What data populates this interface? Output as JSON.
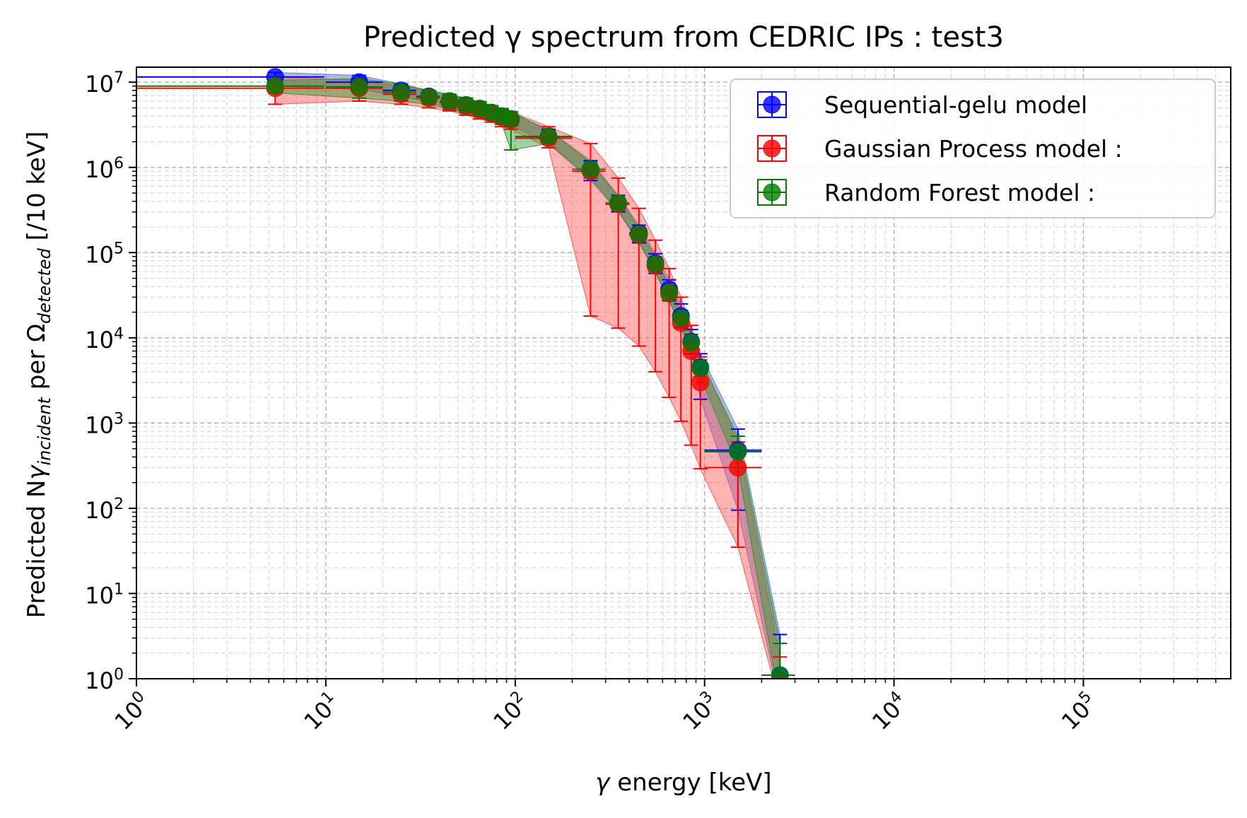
{
  "chart_data": {
    "type": "scatter",
    "title": "Predicted γ spectrum from CEDRIC IPs : test3",
    "xlabel_parts": [
      "γ",
      " energy [keV]"
    ],
    "ylabel_parts": [
      "Predicted N",
      "γ",
      "incident",
      " per ",
      "Ω",
      "detected",
      " [/10 keV]"
    ],
    "x_scale": "log",
    "y_scale": "log",
    "xlim": [
      1,
      600000
    ],
    "ylim": [
      1,
      15000000
    ],
    "x_ticks": [
      {
        "value": 1,
        "base": "10",
        "exp": "0"
      },
      {
        "value": 10,
        "base": "10",
        "exp": "1"
      },
      {
        "value": 100,
        "base": "10",
        "exp": "2"
      },
      {
        "value": 1000,
        "base": "10",
        "exp": "3"
      },
      {
        "value": 10000,
        "base": "10",
        "exp": "4"
      },
      {
        "value": 100000,
        "base": "10",
        "exp": "5"
      }
    ],
    "y_ticks": [
      {
        "value": 1,
        "base": "10",
        "exp": "0"
      },
      {
        "value": 10,
        "base": "10",
        "exp": "1"
      },
      {
        "value": 100,
        "base": "10",
        "exp": "2"
      },
      {
        "value": 1000,
        "base": "10",
        "exp": "3"
      },
      {
        "value": 10000,
        "base": "10",
        "exp": "4"
      },
      {
        "value": 100000,
        "base": "10",
        "exp": "5"
      },
      {
        "value": 1000000,
        "base": "10",
        "exp": "6"
      },
      {
        "value": 10000000,
        "base": "10",
        "exp": "7"
      }
    ],
    "grid": "major and minor, dashed",
    "legend_position": "top-right",
    "series": [
      {
        "name": "Sequential-gelu model",
        "color": "#0000ff",
        "band_color": "#6a7fd6",
        "points": [
          {
            "x": 5.4,
            "y": 11500000,
            "xlo": 1,
            "xhi": 9.8,
            "ylo": 9000000,
            "yhi": 13000000
          },
          {
            "x": 15,
            "y": 10000000,
            "xlo": 10,
            "xhi": 20,
            "ylo": 8200000,
            "yhi": 12000000
          },
          {
            "x": 25,
            "y": 8000000,
            "xlo": 20,
            "xhi": 30,
            "ylo": 6800000,
            "yhi": 9500000
          },
          {
            "x": 35,
            "y": 6800000,
            "xlo": 30,
            "xhi": 40,
            "ylo": 5800000,
            "yhi": 7800000
          },
          {
            "x": 45,
            "y": 6000000,
            "xlo": 40,
            "xhi": 50,
            "ylo": 5100000,
            "yhi": 6900000
          },
          {
            "x": 55,
            "y": 5400000,
            "xlo": 50,
            "xhi": 60,
            "ylo": 4600000,
            "yhi": 6200000
          },
          {
            "x": 65,
            "y": 4900000,
            "xlo": 60,
            "xhi": 70,
            "ylo": 4200000,
            "yhi": 5600000
          },
          {
            "x": 75,
            "y": 4400000,
            "xlo": 70,
            "xhi": 80,
            "ylo": 3800000,
            "yhi": 5100000
          },
          {
            "x": 85,
            "y": 4000000,
            "xlo": 80,
            "xhi": 90,
            "ylo": 3400000,
            "yhi": 4700000
          },
          {
            "x": 95,
            "y": 3700000,
            "xlo": 90,
            "xhi": 100,
            "ylo": 3100000,
            "yhi": 4300000
          },
          {
            "x": 150,
            "y": 2300000,
            "xlo": 100,
            "xhi": 200,
            "ylo": 1900000,
            "yhi": 2800000
          },
          {
            "x": 250,
            "y": 950000,
            "xlo": 200,
            "xhi": 300,
            "ylo": 700000,
            "yhi": 1200000
          },
          {
            "x": 350,
            "y": 380000,
            "xlo": 300,
            "xhi": 400,
            "ylo": 300000,
            "yhi": 470000
          },
          {
            "x": 450,
            "y": 170000,
            "xlo": 400,
            "xhi": 500,
            "ylo": 130000,
            "yhi": 210000
          },
          {
            "x": 550,
            "y": 75000,
            "xlo": 500,
            "xhi": 600,
            "ylo": 57000,
            "yhi": 97000
          },
          {
            "x": 650,
            "y": 37000,
            "xlo": 600,
            "xhi": 700,
            "ylo": 28000,
            "yhi": 48000
          },
          {
            "x": 750,
            "y": 18000,
            "xlo": 700,
            "xhi": 800,
            "ylo": 13000,
            "yhi": 25000
          },
          {
            "x": 850,
            "y": 9000,
            "xlo": 800,
            "xhi": 900,
            "ylo": 6500,
            "yhi": 12500
          },
          {
            "x": 950,
            "y": 4500,
            "xlo": 900,
            "xhi": 1000,
            "ylo": 1900,
            "yhi": 6500
          },
          {
            "x": 1500,
            "y": 480,
            "xlo": 1000,
            "xhi": 2000,
            "ylo": 95,
            "yhi": 850
          },
          {
            "x": 2500,
            "y": 1.1,
            "xlo": 2000,
            "xhi": 3000,
            "ylo": 0.5,
            "yhi": 3.3
          }
        ]
      },
      {
        "name": "Gaussian Process model :",
        "color": "#ff0000",
        "band_color": "#ff5555",
        "points": [
          {
            "x": 5.4,
            "y": 8500000,
            "xlo": 1,
            "xhi": 9.8,
            "ylo": 5500000,
            "yhi": 11500000
          },
          {
            "x": 15,
            "y": 8500000,
            "xlo": 10,
            "xhi": 20,
            "ylo": 6000000,
            "yhi": 10500000
          },
          {
            "x": 25,
            "y": 7200000,
            "xlo": 20,
            "xhi": 30,
            "ylo": 5500000,
            "yhi": 9000000
          },
          {
            "x": 35,
            "y": 6500000,
            "xlo": 30,
            "xhi": 40,
            "ylo": 5000000,
            "yhi": 8000000
          },
          {
            "x": 45,
            "y": 5800000,
            "xlo": 40,
            "xhi": 50,
            "ylo": 4600000,
            "yhi": 7200000
          },
          {
            "x": 55,
            "y": 5200000,
            "xlo": 50,
            "xhi": 60,
            "ylo": 4100000,
            "yhi": 6500000
          },
          {
            "x": 65,
            "y": 4700000,
            "xlo": 60,
            "xhi": 70,
            "ylo": 3700000,
            "yhi": 5900000
          },
          {
            "x": 75,
            "y": 4300000,
            "xlo": 70,
            "xhi": 80,
            "ylo": 3400000,
            "yhi": 5300000
          },
          {
            "x": 85,
            "y": 3900000,
            "xlo": 80,
            "xhi": 90,
            "ylo": 3000000,
            "yhi": 4900000
          },
          {
            "x": 95,
            "y": 3600000,
            "xlo": 90,
            "xhi": 100,
            "ylo": 2800000,
            "yhi": 4500000
          },
          {
            "x": 150,
            "y": 2200000,
            "xlo": 100,
            "xhi": 200,
            "ylo": 1700000,
            "yhi": 3000000
          },
          {
            "x": 250,
            "y": 900000,
            "xlo": 200,
            "xhi": 300,
            "ylo": 18000,
            "yhi": 1900000
          },
          {
            "x": 350,
            "y": 370000,
            "xlo": 300,
            "xhi": 400,
            "ylo": 13000,
            "yhi": 750000
          },
          {
            "x": 450,
            "y": 160000,
            "xlo": 400,
            "xhi": 500,
            "ylo": 8000,
            "yhi": 330000
          },
          {
            "x": 550,
            "y": 70000,
            "xlo": 500,
            "xhi": 600,
            "ylo": 4000,
            "yhi": 140000
          },
          {
            "x": 650,
            "y": 33000,
            "xlo": 600,
            "xhi": 700,
            "ylo": 2000,
            "yhi": 65000
          },
          {
            "x": 750,
            "y": 15000,
            "xlo": 700,
            "xhi": 800,
            "ylo": 1050,
            "yhi": 30000
          },
          {
            "x": 850,
            "y": 7000,
            "xlo": 800,
            "xhi": 900,
            "ylo": 550,
            "yhi": 14000
          },
          {
            "x": 950,
            "y": 3000,
            "xlo": 900,
            "xhi": 1000,
            "ylo": 290,
            "yhi": 6000
          },
          {
            "x": 1500,
            "y": 300,
            "xlo": 1000,
            "xhi": 2000,
            "ylo": 35,
            "yhi": 600
          },
          {
            "x": 2500,
            "y": 0.9,
            "xlo": 2000,
            "xhi": 3000,
            "ylo": 0.5,
            "yhi": 1.8
          }
        ]
      },
      {
        "name": "Random Forest model :",
        "color": "#007f00",
        "band_color": "#2f9a2f",
        "points": [
          {
            "x": 5.4,
            "y": 9000000,
            "xlo": 1,
            "xhi": 9.8,
            "ylo": 7500000,
            "yhi": 10500000
          },
          {
            "x": 15,
            "y": 8800000,
            "xlo": 10,
            "xhi": 20,
            "ylo": 6500000,
            "yhi": 11000000
          },
          {
            "x": 25,
            "y": 7600000,
            "xlo": 20,
            "xhi": 30,
            "ylo": 6000000,
            "yhi": 9500000
          },
          {
            "x": 35,
            "y": 6700000,
            "xlo": 30,
            "xhi": 40,
            "ylo": 5500000,
            "yhi": 8000000
          },
          {
            "x": 45,
            "y": 6000000,
            "xlo": 40,
            "xhi": 50,
            "ylo": 4800000,
            "yhi": 7200000
          },
          {
            "x": 55,
            "y": 5400000,
            "xlo": 50,
            "xhi": 60,
            "ylo": 4400000,
            "yhi": 6500000
          },
          {
            "x": 65,
            "y": 4900000,
            "xlo": 60,
            "xhi": 70,
            "ylo": 4000000,
            "yhi": 5900000
          },
          {
            "x": 75,
            "y": 4400000,
            "xlo": 70,
            "xhi": 80,
            "ylo": 3600000,
            "yhi": 5300000
          },
          {
            "x": 85,
            "y": 4000000,
            "xlo": 80,
            "xhi": 90,
            "ylo": 3200000,
            "yhi": 4900000
          },
          {
            "x": 95,
            "y": 3700000,
            "xlo": 90,
            "xhi": 100,
            "ylo": 1600000,
            "yhi": 4500000
          },
          {
            "x": 150,
            "y": 2300000,
            "xlo": 100,
            "xhi": 200,
            "ylo": 1900000,
            "yhi": 2700000
          },
          {
            "x": 250,
            "y": 950000,
            "xlo": 200,
            "xhi": 300,
            "ylo": 750000,
            "yhi": 1150000
          },
          {
            "x": 350,
            "y": 380000,
            "xlo": 300,
            "xhi": 400,
            "ylo": 310000,
            "yhi": 450000
          },
          {
            "x": 450,
            "y": 165000,
            "xlo": 400,
            "xhi": 500,
            "ylo": 135000,
            "yhi": 195000
          },
          {
            "x": 550,
            "y": 73000,
            "xlo": 500,
            "xhi": 600,
            "ylo": 60000,
            "yhi": 88000
          },
          {
            "x": 650,
            "y": 34000,
            "xlo": 600,
            "xhi": 700,
            "ylo": 27000,
            "yhi": 41000
          },
          {
            "x": 750,
            "y": 17000,
            "xlo": 700,
            "xhi": 800,
            "ylo": 13500,
            "yhi": 21000
          },
          {
            "x": 850,
            "y": 8800,
            "xlo": 800,
            "xhi": 900,
            "ylo": 7000,
            "yhi": 11000
          },
          {
            "x": 950,
            "y": 4400,
            "xlo": 900,
            "xhi": 1000,
            "ylo": 3500,
            "yhi": 5500
          },
          {
            "x": 1500,
            "y": 460,
            "xlo": 1000,
            "xhi": 2000,
            "ylo": 300,
            "yhi": 700
          },
          {
            "x": 2500,
            "y": 1.1,
            "xlo": 2000,
            "xhi": 3000,
            "ylo": 0.5,
            "yhi": 2.6
          }
        ]
      }
    ]
  }
}
